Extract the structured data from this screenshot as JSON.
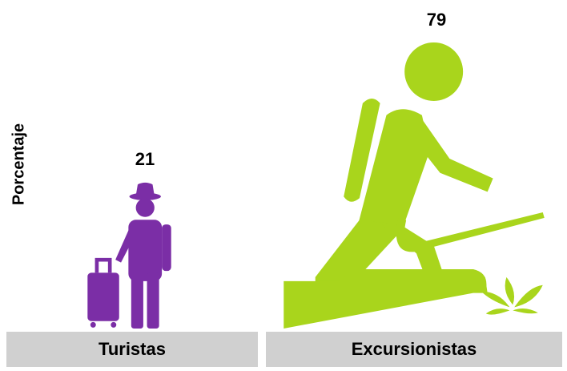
{
  "chart_data": {
    "type": "pictogram",
    "y_label": "Porcentaje",
    "categories": [
      "Turistas",
      "Excursionistas"
    ],
    "values": [
      21,
      79
    ],
    "colors": [
      "#7b2ea6",
      "#a9d51c"
    ]
  }
}
